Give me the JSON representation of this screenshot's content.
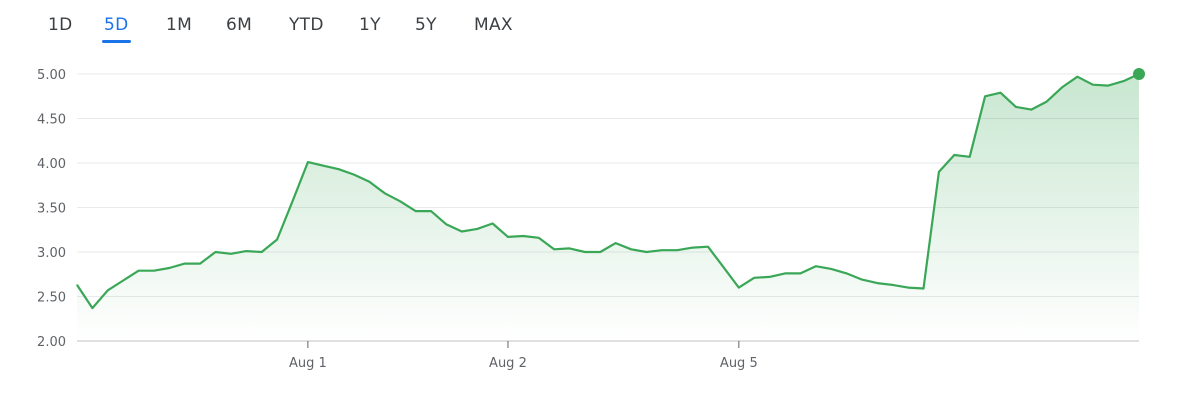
{
  "range_tabs": [
    {
      "label": "1D",
      "active": false
    },
    {
      "label": "5D",
      "active": true
    },
    {
      "label": "1M",
      "active": false
    },
    {
      "label": "6M",
      "active": false
    },
    {
      "label": "YTD",
      "active": false
    },
    {
      "label": "1Y",
      "active": false
    },
    {
      "label": "5Y",
      "active": false
    },
    {
      "label": "MAX",
      "active": false
    }
  ],
  "colors": {
    "line": "#3aa757",
    "accent_tab": "#1a73e8",
    "grid": "#e8eaed"
  },
  "chart_data": {
    "type": "area",
    "title": "",
    "xlabel": "",
    "ylabel": "",
    "ylim": [
      2.0,
      5.0
    ],
    "yticks": [
      "5.00",
      "4.50",
      "4.00",
      "3.50",
      "3.00",
      "2.50",
      "2.00"
    ],
    "ytick_values": [
      5.0,
      4.5,
      4.0,
      3.5,
      3.0,
      2.5,
      2.0
    ],
    "xticks": [
      {
        "label": "Aug 1",
        "index": 15
      },
      {
        "label": "Aug 2",
        "index": 28
      },
      {
        "label": "Aug 5",
        "index": 43
      }
    ],
    "grid": true,
    "legend": "none",
    "values": [
      2.63,
      2.37,
      2.57,
      2.68,
      2.79,
      2.79,
      2.82,
      2.87,
      2.87,
      3.0,
      2.98,
      3.01,
      3.0,
      3.14,
      3.57,
      4.01,
      3.97,
      3.93,
      3.87,
      3.79,
      3.66,
      3.57,
      3.46,
      3.46,
      3.31,
      3.23,
      3.26,
      3.32,
      3.17,
      3.18,
      3.16,
      3.03,
      3.04,
      3.0,
      3.0,
      3.1,
      3.03,
      3.0,
      3.02,
      3.02,
      3.05,
      3.06,
      2.83,
      2.6,
      2.71,
      2.72,
      2.76,
      2.76,
      2.84,
      2.81,
      2.76,
      2.69,
      2.65,
      2.63,
      2.6,
      2.59,
      3.9,
      4.09,
      4.07,
      4.75,
      4.79,
      4.63,
      4.6,
      4.69,
      4.85,
      4.97,
      4.88,
      4.87,
      4.92,
      5.0
    ]
  }
}
